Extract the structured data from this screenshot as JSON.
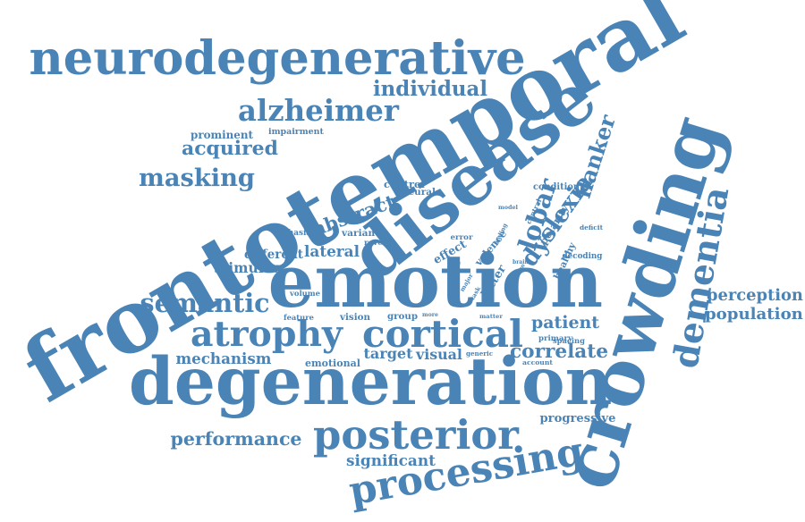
{
  "color": "#4a84b6",
  "words": [
    {
      "text": "frontotemporal"
    },
    {
      "text": "emotion"
    },
    {
      "text": "degeneration"
    },
    {
      "text": "crowding"
    },
    {
      "text": "neurodegenerative"
    },
    {
      "text": "disease"
    },
    {
      "text": "atrophy"
    },
    {
      "text": "cortical"
    },
    {
      "text": "posterior"
    },
    {
      "text": "processing"
    },
    {
      "text": "dementia"
    },
    {
      "text": "alzheimer"
    },
    {
      "text": "semantic"
    },
    {
      "text": "acquired"
    },
    {
      "text": "masking"
    },
    {
      "text": "individual"
    },
    {
      "text": "lobar"
    },
    {
      "text": "dyslexia"
    },
    {
      "text": "flanker"
    },
    {
      "text": "lateral"
    },
    {
      "text": "abstract"
    },
    {
      "text": "patient"
    },
    {
      "text": "correlate"
    },
    {
      "text": "mechanism"
    },
    {
      "text": "performance"
    },
    {
      "text": "perception"
    },
    {
      "text": "population"
    },
    {
      "text": "significant"
    },
    {
      "text": "progressive"
    },
    {
      "text": "prominent"
    },
    {
      "text": "impairment"
    },
    {
      "text": "different"
    },
    {
      "text": "stimulus"
    },
    {
      "text": "target"
    },
    {
      "text": "visual"
    },
    {
      "text": "emotional"
    },
    {
      "text": "control"
    },
    {
      "text": "neural"
    },
    {
      "text": "aphasia"
    },
    {
      "text": "variant"
    },
    {
      "text": "reverse"
    },
    {
      "text": "effect"
    },
    {
      "text": "error"
    },
    {
      "text": "valence"
    },
    {
      "text": "letter"
    },
    {
      "text": "polarity"
    },
    {
      "text": "condition"
    },
    {
      "text": "decoding"
    },
    {
      "text": "healthy"
    },
    {
      "text": "deficit"
    },
    {
      "text": "central"
    },
    {
      "text": "finding"
    },
    {
      "text": "model"
    },
    {
      "text": "brain"
    },
    {
      "text": "grey"
    },
    {
      "text": "region"
    },
    {
      "text": "major"
    },
    {
      "text": "signal"
    },
    {
      "text": "task"
    },
    {
      "text": "volume"
    },
    {
      "text": "feature"
    },
    {
      "text": "vision"
    },
    {
      "text": "group"
    },
    {
      "text": "more"
    },
    {
      "text": "matter"
    },
    {
      "text": "primary"
    },
    {
      "text": "spacing"
    },
    {
      "text": "generic"
    },
    {
      "text": "account"
    }
  ]
}
